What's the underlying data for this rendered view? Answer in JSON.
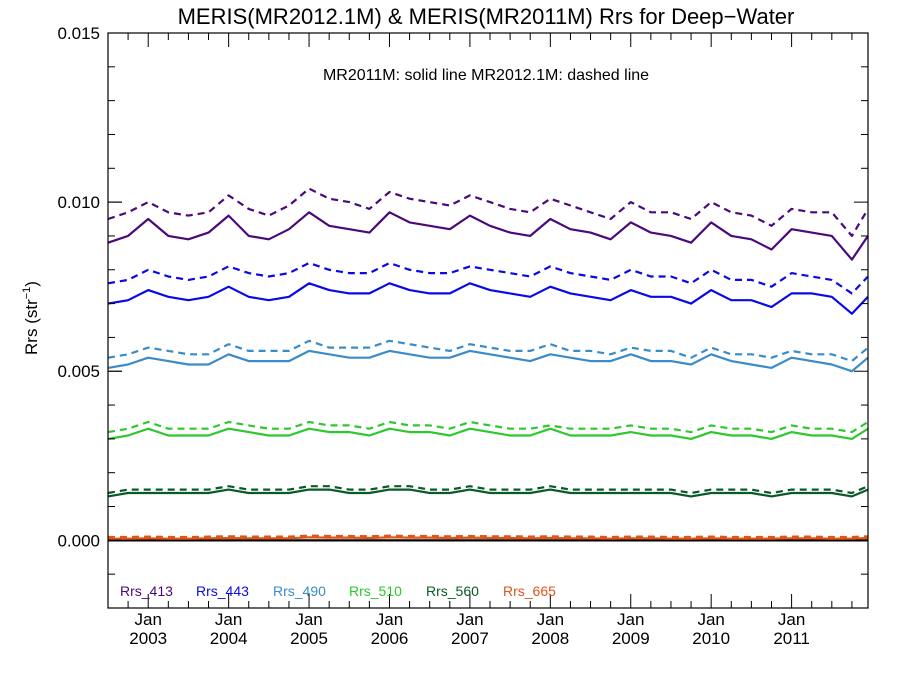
{
  "chart_data": {
    "type": "line",
    "title": "MERIS(MR2012.1M) & MERIS(MR2011M)  Rrs for Deep−Water",
    "annotation": "MR2011M: solid line   MR2012.1M: dashed line",
    "ylabel": "Rrs (str",
    "ylabel_sup": "−1",
    "ylabel_close": ")",
    "ylim": [
      -0.002,
      0.015
    ],
    "xlim": [
      2002.5,
      2011.95
    ],
    "yticks": [
      {
        "value": 0.0,
        "label": "0.000"
      },
      {
        "value": 0.005,
        "label": "0.005"
      },
      {
        "value": 0.01,
        "label": "0.010"
      },
      {
        "value": 0.015,
        "label": "0.015"
      }
    ],
    "xticks": [
      {
        "value": 2003.0,
        "month": "Jan",
        "year": "2003"
      },
      {
        "value": 2004.0,
        "month": "Jan",
        "year": "2004"
      },
      {
        "value": 2005.0,
        "month": "Jan",
        "year": "2005"
      },
      {
        "value": 2006.0,
        "month": "Jan",
        "year": "2006"
      },
      {
        "value": 2007.0,
        "month": "Jan",
        "year": "2007"
      },
      {
        "value": 2008.0,
        "month": "Jan",
        "year": "2008"
      },
      {
        "value": 2009.0,
        "month": "Jan",
        "year": "2009"
      },
      {
        "value": 2010.0,
        "month": "Jan",
        "year": "2010"
      },
      {
        "value": 2011.0,
        "month": "Jan",
        "year": "2011"
      }
    ],
    "x": [
      2002.5,
      2002.75,
      2003.0,
      2003.25,
      2003.5,
      2003.75,
      2004.0,
      2004.25,
      2004.5,
      2004.75,
      2005.0,
      2005.25,
      2005.5,
      2005.75,
      2006.0,
      2006.25,
      2006.5,
      2006.75,
      2007.0,
      2007.25,
      2007.5,
      2007.75,
      2008.0,
      2008.25,
      2008.5,
      2008.75,
      2009.0,
      2009.25,
      2009.5,
      2009.75,
      2010.0,
      2010.25,
      2010.5,
      2010.75,
      2011.0,
      2011.25,
      2011.5,
      2011.75,
      2011.95
    ],
    "series": [
      {
        "name": "Rrs_413",
        "color": "#4b0a7a",
        "solid": [
          0.0088,
          0.009,
          0.0095,
          0.009,
          0.0089,
          0.0091,
          0.0096,
          0.009,
          0.0089,
          0.0092,
          0.0097,
          0.0093,
          0.0092,
          0.0091,
          0.0097,
          0.0094,
          0.0093,
          0.0092,
          0.0096,
          0.0093,
          0.0091,
          0.009,
          0.0095,
          0.0092,
          0.0091,
          0.0089,
          0.0094,
          0.0091,
          0.009,
          0.0088,
          0.0094,
          0.009,
          0.0089,
          0.0086,
          0.0092,
          0.0091,
          0.009,
          0.0083,
          0.009
        ],
        "dashed": [
          0.0095,
          0.0097,
          0.01,
          0.0097,
          0.0096,
          0.0097,
          0.0102,
          0.0098,
          0.0096,
          0.0099,
          0.0104,
          0.0101,
          0.01,
          0.0098,
          0.0103,
          0.0101,
          0.01,
          0.0099,
          0.0102,
          0.01,
          0.0098,
          0.0097,
          0.0101,
          0.0099,
          0.0097,
          0.0095,
          0.01,
          0.0097,
          0.0097,
          0.0095,
          0.01,
          0.0097,
          0.0096,
          0.0093,
          0.0098,
          0.0097,
          0.0097,
          0.009,
          0.0098
        ]
      },
      {
        "name": "Rrs_443",
        "color": "#0a0ae6",
        "solid": [
          0.007,
          0.0071,
          0.0074,
          0.0072,
          0.0071,
          0.0072,
          0.0075,
          0.0072,
          0.0071,
          0.0072,
          0.0076,
          0.0074,
          0.0073,
          0.0073,
          0.0076,
          0.0074,
          0.0073,
          0.0073,
          0.0076,
          0.0074,
          0.0073,
          0.0072,
          0.0075,
          0.0073,
          0.0072,
          0.0071,
          0.0074,
          0.0072,
          0.0072,
          0.007,
          0.0074,
          0.0071,
          0.0071,
          0.0069,
          0.0073,
          0.0073,
          0.0072,
          0.0067,
          0.0072
        ],
        "dashed": [
          0.0076,
          0.0077,
          0.008,
          0.0078,
          0.0077,
          0.0078,
          0.0081,
          0.0079,
          0.0078,
          0.0079,
          0.0082,
          0.008,
          0.0079,
          0.0079,
          0.0082,
          0.008,
          0.0079,
          0.0079,
          0.0081,
          0.008,
          0.0079,
          0.0078,
          0.0081,
          0.0079,
          0.0078,
          0.0077,
          0.008,
          0.0078,
          0.0078,
          0.0076,
          0.008,
          0.0077,
          0.0077,
          0.0075,
          0.0079,
          0.0078,
          0.0077,
          0.0073,
          0.0078
        ]
      },
      {
        "name": "Rrs_490",
        "color": "#3a8cc8",
        "solid": [
          0.0051,
          0.0052,
          0.0054,
          0.0053,
          0.0052,
          0.0052,
          0.0055,
          0.0053,
          0.0053,
          0.0053,
          0.0056,
          0.0055,
          0.0054,
          0.0054,
          0.0056,
          0.0055,
          0.0054,
          0.0054,
          0.0056,
          0.0055,
          0.0054,
          0.0053,
          0.0055,
          0.0054,
          0.0053,
          0.0053,
          0.0055,
          0.0053,
          0.0053,
          0.0052,
          0.0055,
          0.0053,
          0.0052,
          0.0051,
          0.0054,
          0.0053,
          0.0052,
          0.005,
          0.0054
        ],
        "dashed": [
          0.0054,
          0.0055,
          0.0057,
          0.0056,
          0.0055,
          0.0055,
          0.0058,
          0.0056,
          0.0056,
          0.0056,
          0.0059,
          0.0057,
          0.0057,
          0.0057,
          0.0059,
          0.0058,
          0.0057,
          0.0056,
          0.0058,
          0.0057,
          0.0056,
          0.0056,
          0.0058,
          0.0056,
          0.0056,
          0.0055,
          0.0057,
          0.0056,
          0.0056,
          0.0054,
          0.0057,
          0.0055,
          0.0055,
          0.0054,
          0.0056,
          0.0055,
          0.0055,
          0.0053,
          0.0057
        ]
      },
      {
        "name": "Rrs_510",
        "color": "#2ec82e",
        "solid": [
          0.003,
          0.0031,
          0.0033,
          0.0031,
          0.0031,
          0.0031,
          0.0033,
          0.0032,
          0.0031,
          0.0031,
          0.0033,
          0.0032,
          0.0032,
          0.0031,
          0.0033,
          0.0032,
          0.0032,
          0.0031,
          0.0033,
          0.0032,
          0.0031,
          0.0031,
          0.0033,
          0.0031,
          0.0031,
          0.0031,
          0.0032,
          0.0031,
          0.0031,
          0.003,
          0.0032,
          0.0031,
          0.0031,
          0.003,
          0.0032,
          0.0031,
          0.0031,
          0.003,
          0.0033
        ],
        "dashed": [
          0.0032,
          0.0033,
          0.0035,
          0.0033,
          0.0033,
          0.0033,
          0.0035,
          0.0034,
          0.0033,
          0.0033,
          0.0035,
          0.0034,
          0.0034,
          0.0033,
          0.0035,
          0.0034,
          0.0034,
          0.0033,
          0.0035,
          0.0034,
          0.0033,
          0.0033,
          0.0034,
          0.0033,
          0.0033,
          0.0033,
          0.0034,
          0.0033,
          0.0033,
          0.0032,
          0.0034,
          0.0033,
          0.0033,
          0.0032,
          0.0034,
          0.0033,
          0.0033,
          0.0032,
          0.0035
        ]
      },
      {
        "name": "Rrs_560",
        "color": "#0a5a28",
        "solid": [
          0.0013,
          0.0014,
          0.0014,
          0.0014,
          0.0014,
          0.0014,
          0.0015,
          0.0014,
          0.0014,
          0.0014,
          0.0015,
          0.0015,
          0.0014,
          0.0014,
          0.0015,
          0.0015,
          0.0014,
          0.0014,
          0.0015,
          0.0014,
          0.0014,
          0.0014,
          0.0015,
          0.0014,
          0.0014,
          0.0014,
          0.0014,
          0.0014,
          0.0014,
          0.0013,
          0.0014,
          0.0014,
          0.0014,
          0.0013,
          0.0014,
          0.0014,
          0.0014,
          0.0013,
          0.0015
        ],
        "dashed": [
          0.0014,
          0.0015,
          0.0015,
          0.0015,
          0.0015,
          0.0015,
          0.0016,
          0.0015,
          0.0015,
          0.0015,
          0.0016,
          0.0016,
          0.0015,
          0.0015,
          0.0016,
          0.0016,
          0.0015,
          0.0015,
          0.0016,
          0.0015,
          0.0015,
          0.0015,
          0.0016,
          0.0015,
          0.0015,
          0.0015,
          0.0015,
          0.0015,
          0.0015,
          0.0014,
          0.0015,
          0.0015,
          0.0015,
          0.0014,
          0.0015,
          0.0015,
          0.0015,
          0.0014,
          0.0016
        ]
      },
      {
        "name": "Rrs_665",
        "color": "#e0551a",
        "solid": [
          5e-05,
          5e-05,
          6e-05,
          5e-05,
          5e-05,
          6e-05,
          7e-05,
          6e-05,
          6e-05,
          6e-05,
          9e-05,
          8e-05,
          8e-05,
          7e-05,
          9e-05,
          8e-05,
          8e-05,
          7e-05,
          8e-05,
          7e-05,
          7e-05,
          6e-05,
          7e-05,
          6e-05,
          6e-05,
          5e-05,
          6e-05,
          6e-05,
          5e-05,
          5e-05,
          6e-05,
          5e-05,
          5e-05,
          5e-05,
          6e-05,
          6e-05,
          5e-05,
          5e-05,
          7e-05
        ],
        "dashed": [
          0.0001,
          0.0001,
          0.00011,
          0.0001,
          0.0001,
          0.00011,
          0.00012,
          0.00011,
          0.00011,
          0.00011,
          0.00014,
          0.00013,
          0.00013,
          0.00012,
          0.00014,
          0.00013,
          0.00013,
          0.00012,
          0.00013,
          0.00012,
          0.00012,
          0.00011,
          0.00012,
          0.00011,
          0.00011,
          0.0001,
          0.00011,
          0.00011,
          0.0001,
          0.0001,
          0.00011,
          0.0001,
          0.0001,
          0.0001,
          0.00011,
          0.00011,
          0.0001,
          0.0001,
          0.00012
        ]
      }
    ],
    "legend_placement": "bottom-left inside plot",
    "zero_line": true,
    "grid": false
  }
}
